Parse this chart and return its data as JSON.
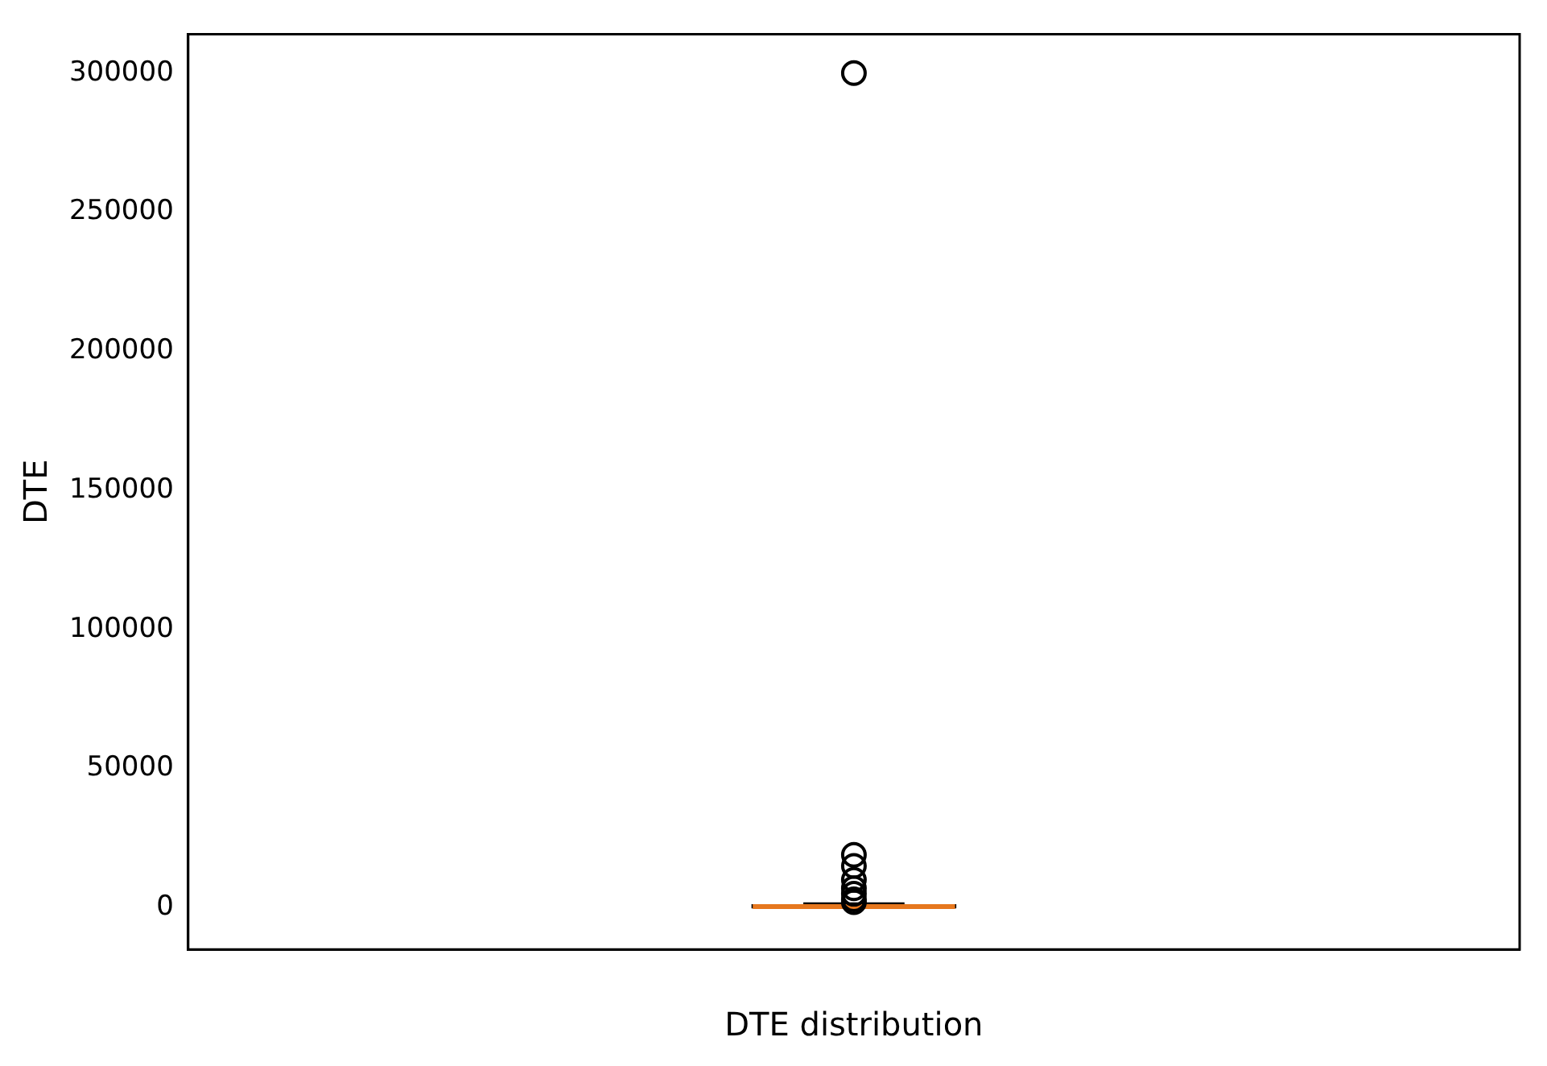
{
  "chart_data": {
    "type": "box",
    "xlabel": "DTE distribution",
    "ylabel": "DTE",
    "categories": [
      null
    ],
    "boxes": [
      {
        "low": 50,
        "q1": 200,
        "median": 400,
        "q3": 800,
        "high": 1500,
        "outliers": [
          2000,
          3000,
          5000,
          7000,
          10000,
          15000,
          19000,
          300000
        ]
      }
    ],
    "ylim": [
      -15000,
      314000
    ],
    "yticks": [
      0,
      50000,
      100000,
      150000,
      200000,
      250000,
      300000
    ],
    "grid": false,
    "legend": false,
    "marker": "circle"
  }
}
